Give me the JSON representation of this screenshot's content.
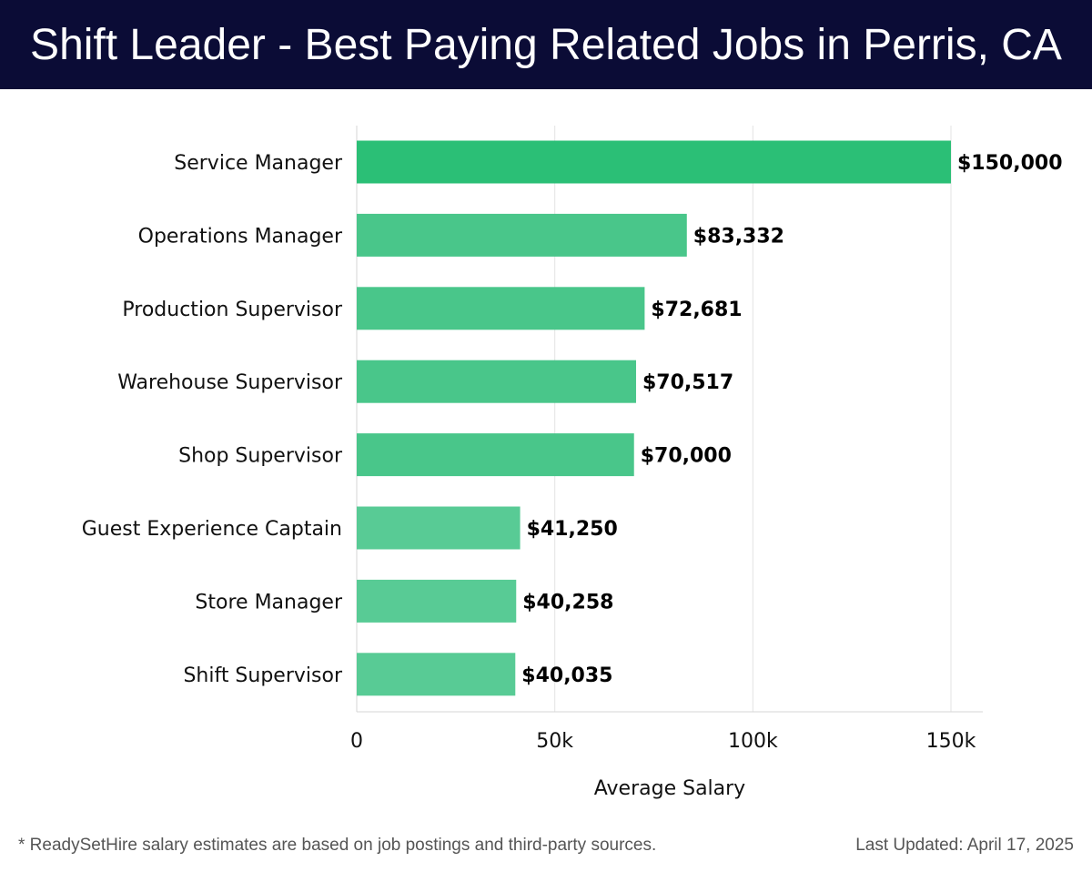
{
  "header": {
    "title": "Shift Leader - Best Paying Related Jobs in Perris, CA",
    "background": "#0b0c36"
  },
  "chart_data": {
    "type": "bar",
    "orientation": "horizontal",
    "title": "Shift Leader - Best Paying Related Jobs in Perris, CA",
    "xlabel": "Average Salary",
    "ylabel": "",
    "xlim": [
      0,
      158000
    ],
    "x_ticks": [
      0,
      50000,
      100000,
      150000
    ],
    "x_tick_labels": [
      "0",
      "50k",
      "100k",
      "150k"
    ],
    "grid": "vertical",
    "categories": [
      "Service Manager",
      "Operations Manager",
      "Production Supervisor",
      "Warehouse Supervisor",
      "Shop Supervisor",
      "Guest Experience Captain",
      "Store Manager",
      "Shift Supervisor"
    ],
    "values": [
      150000,
      83332,
      72681,
      70517,
      70000,
      41250,
      40258,
      40035
    ],
    "value_labels": [
      "$150,000",
      "$83,332",
      "$72,681",
      "$70,517",
      "$70,000",
      "$41,250",
      "$40,258",
      "$40,035"
    ],
    "bar_colors": [
      "#2bbf76",
      "#49c68a",
      "#49c68a",
      "#49c68a",
      "#49c68a",
      "#58cb95",
      "#58cb95",
      "#58cb95"
    ]
  },
  "footer": {
    "note": "* ReadySetHire salary estimates are based on job postings and third-party sources.",
    "updated": "Last Updated: April 17, 2025"
  }
}
